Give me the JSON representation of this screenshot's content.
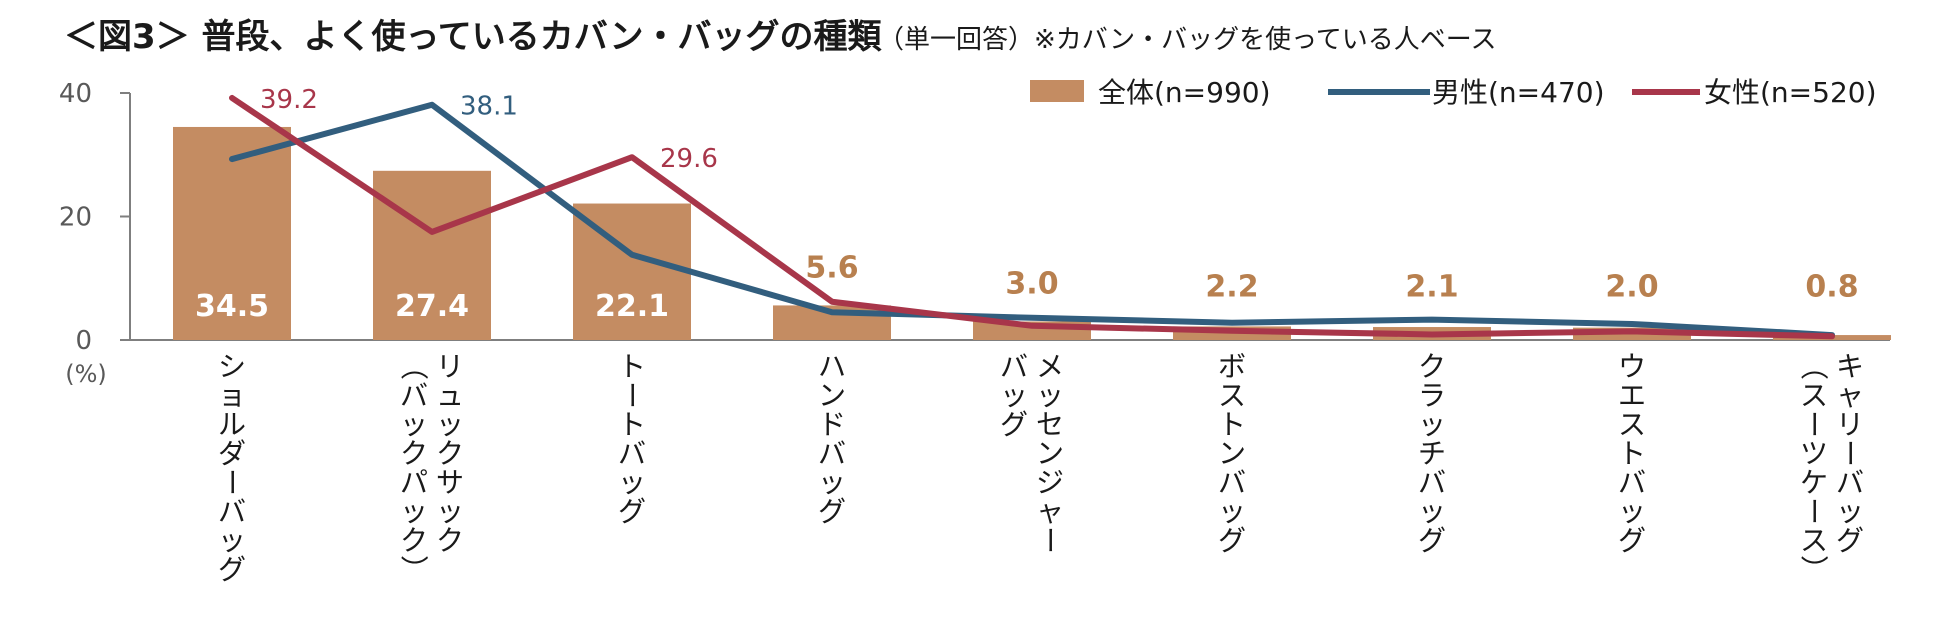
{
  "title": {
    "main": "＜図3＞ 普段、よく使っているカバン・バッグの種類",
    "note": "（単一回答）※カバン・バッグを使っている人ベース"
  },
  "colors": {
    "total": "#c48c62",
    "male": "#325e7e",
    "female": "#a8364a",
    "total_label_outside": "#b8804f",
    "axis": "#7f7f7f"
  },
  "chart_data": {
    "type": "bar",
    "title": "＜図3＞ 普段、よく使っているカバン・バッグの種類",
    "ylabel": "(%)",
    "ylim": [
      0,
      40
    ],
    "yticks": [
      "0",
      "20",
      "40"
    ],
    "categories": [
      [
        "ショルダーバッグ"
      ],
      [
        "リュックサック",
        "（バックパック）"
      ],
      [
        "トートバッグ"
      ],
      [
        "ハンドバッグ"
      ],
      [
        "メッセンジャー",
        "バッグ"
      ],
      [
        "ボストンバッグ"
      ],
      [
        "クラッチバッグ"
      ],
      [
        "ウエストバッグ"
      ],
      [
        "キャリーバッグ",
        "（スーツケース）"
      ]
    ],
    "series": [
      {
        "name": "全体(n=990)",
        "kind": "bar",
        "values": [
          34.5,
          27.4,
          22.1,
          5.6,
          3.0,
          2.2,
          2.1,
          2.0,
          0.8
        ],
        "labels": [
          "34.5",
          "27.4",
          "22.1",
          "5.6",
          "3.0",
          "2.2",
          "2.1",
          "2.0",
          "0.8"
        ]
      },
      {
        "name": "男性(n=470)",
        "kind": "line",
        "values": [
          29.3,
          38.1,
          13.8,
          4.5,
          3.6,
          2.8,
          3.3,
          2.6,
          0.8
        ],
        "labels": [
          "",
          "38.1",
          "",
          "",
          "",
          "",
          "",
          "",
          ""
        ]
      },
      {
        "name": "女性(n=520)",
        "kind": "line",
        "values": [
          39.2,
          17.5,
          29.6,
          6.2,
          2.3,
          1.5,
          0.9,
          1.4,
          0.6
        ],
        "labels": [
          "39.2",
          "",
          "29.6",
          "",
          "",
          "",
          "",
          "",
          ""
        ]
      }
    ],
    "legend_position": "top-right",
    "grid": false
  }
}
